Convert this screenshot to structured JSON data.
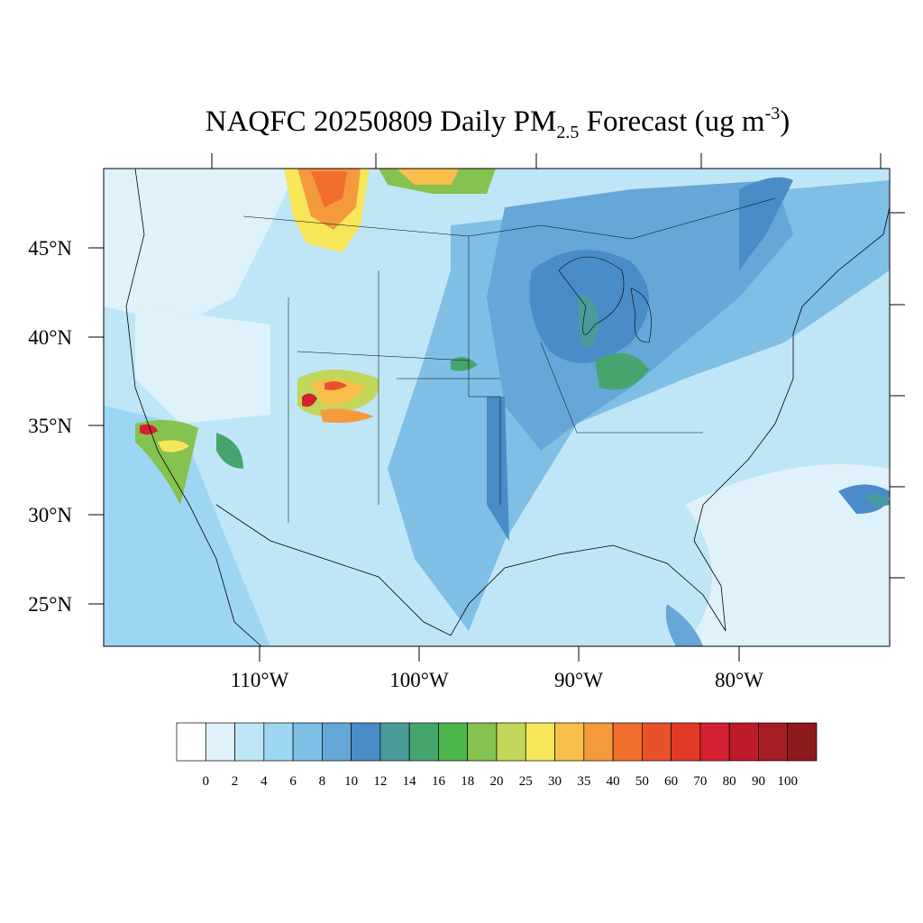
{
  "title": {
    "main": "NAQFC 20250809 Daily PM",
    "sub": "2.5",
    "mid": " Forecast (ug m",
    "sup": "-3",
    "end": ")"
  },
  "map": {
    "lat_labels": [
      "45°N",
      "40°N",
      "35°N",
      "30°N",
      "25°N"
    ],
    "lon_labels": [
      "110°W",
      "100°W",
      "90°W",
      "80°W"
    ]
  },
  "colorbar": {
    "colors": [
      "#ffffff",
      "#dff1fb",
      "#bfe6f7",
      "#9dd6f3",
      "#80bfe5",
      "#66a7d8",
      "#4a8cc8",
      "#4b9b9b",
      "#46a56e",
      "#4cb54a",
      "#86c24f",
      "#c2d65a",
      "#f7e65a",
      "#f8bf4a",
      "#f49a3d",
      "#f26e2e",
      "#e8522b",
      "#e03a27",
      "#d42030",
      "#bd1b2a",
      "#a81c24",
      "#8e1a1e"
    ],
    "labels": [
      0,
      2,
      4,
      6,
      8,
      10,
      12,
      14,
      16,
      18,
      20,
      25,
      30,
      35,
      40,
      50,
      60,
      70,
      80,
      90,
      100
    ]
  }
}
